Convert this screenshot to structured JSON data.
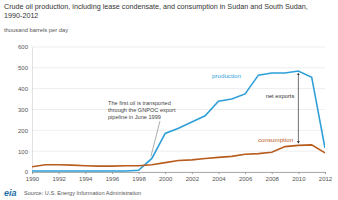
{
  "chart_data": {
    "type": "line",
    "title": "Crude oil production, including lease condensate, and consumption in Sudan and South Sudan, 1990-2012",
    "y_label": "thousand barrels per day",
    "source": "Source: U.S. Energy Information Administration",
    "logo": "eia",
    "x": [
      1990,
      1991,
      1992,
      1993,
      1994,
      1995,
      1996,
      1997,
      1998,
      1999,
      2000,
      2001,
      2002,
      2003,
      2004,
      2005,
      2006,
      2007,
      2008,
      2009,
      2010,
      2011,
      2012
    ],
    "series": [
      {
        "name": "production",
        "color": "#2e9fd8",
        "values": [
          5,
          5,
          5,
          5,
          5,
          5,
          5,
          5,
          8,
          65,
          185,
          210,
          240,
          270,
          340,
          350,
          375,
          465,
          475,
          475,
          485,
          455,
          115
        ]
      },
      {
        "name": "consumption",
        "color": "#b85c1e",
        "values": [
          25,
          35,
          35,
          33,
          30,
          28,
          28,
          30,
          30,
          35,
          45,
          55,
          58,
          65,
          70,
          75,
          85,
          88,
          95,
          122,
          128,
          130,
          92
        ]
      }
    ],
    "annotations": [
      "net exports",
      "The first oil is transported through the GNPOC export pipeline in June 1999"
    ],
    "xlim": [
      1990,
      2012
    ],
    "xticks": [
      1990,
      1992,
      1994,
      1996,
      1998,
      2000,
      2002,
      2004,
      2006,
      2008,
      2010,
      2012
    ],
    "ylim": [
      0,
      600
    ],
    "yticks": [
      0,
      100,
      200,
      300,
      400,
      500,
      600
    ],
    "grid": true
  }
}
